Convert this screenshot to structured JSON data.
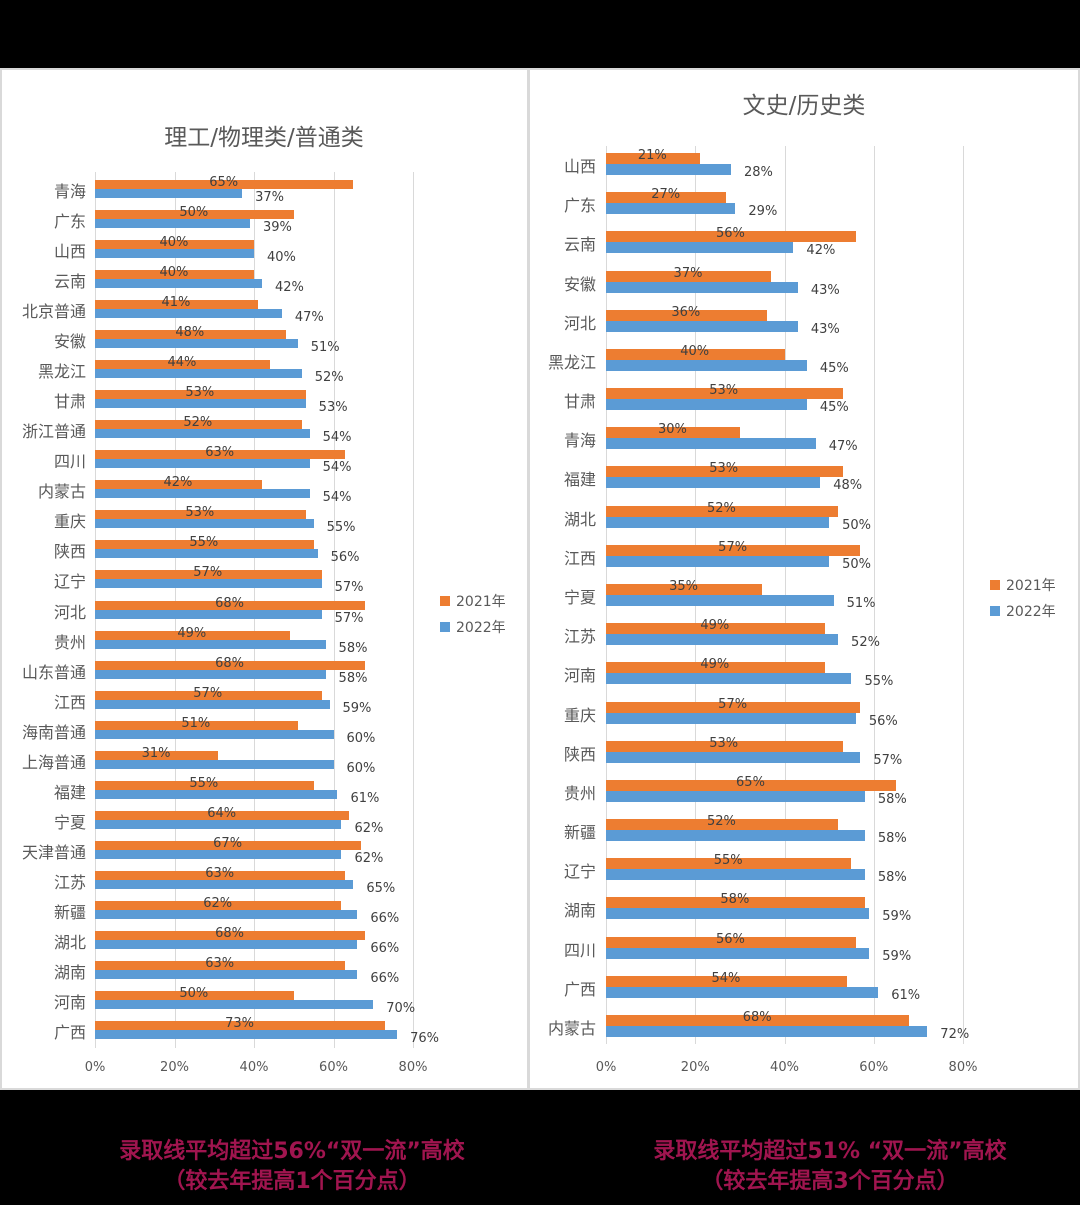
{
  "colors": {
    "series_2021": "#ed7d31",
    "series_2022": "#5b9bd5",
    "caption": "#a0154f",
    "grid": "#d9d9d9",
    "text": "#595959"
  },
  "legend": [
    "2021年",
    "2022年"
  ],
  "chart_data": [
    {
      "type": "bar",
      "orientation": "horizontal",
      "title": "理工/物理类/普通类",
      "categories": [
        "青海",
        "广东",
        "山西",
        "云南",
        "北京普通",
        "安徽",
        "黑龙江",
        "甘肃",
        "浙江普通",
        "四川",
        "内蒙古",
        "重庆",
        "陕西",
        "辽宁",
        "河北",
        "贵州",
        "山东普通",
        "江西",
        "海南普通",
        "上海普通",
        "福建",
        "宁夏",
        "天津普通",
        "江苏",
        "新疆",
        "湖北",
        "湖南",
        "河南",
        "广西"
      ],
      "series": [
        {
          "name": "2021年",
          "values": [
            65,
            50,
            40,
            40,
            41,
            48,
            44,
            53,
            52,
            63,
            42,
            53,
            55,
            57,
            68,
            49,
            68,
            57,
            51,
            31,
            55,
            64,
            67,
            63,
            62,
            68,
            63,
            50,
            73
          ]
        },
        {
          "name": "2022年",
          "values": [
            37,
            39,
            40,
            42,
            47,
            51,
            52,
            53,
            54,
            54,
            54,
            55,
            56,
            57,
            57,
            58,
            58,
            59,
            60,
            60,
            61,
            62,
            62,
            65,
            66,
            66,
            66,
            70,
            76
          ]
        }
      ],
      "xlabel": "",
      "ylabel": "",
      "xticks": [
        "0%",
        "20%",
        "40%",
        "60%",
        "80%"
      ],
      "xlim": [
        0,
        80
      ],
      "grid": true,
      "legend_position": "right",
      "caption": [
        "录取线平均超过56%“双一流”高校",
        "（较去年提高1个百分点）"
      ]
    },
    {
      "type": "bar",
      "orientation": "horizontal",
      "title": "文史/历史类",
      "categories": [
        "山西",
        "广东",
        "云南",
        "安徽",
        "河北",
        "黑龙江",
        "甘肃",
        "青海",
        "福建",
        "湖北",
        "江西",
        "宁夏",
        "江苏",
        "河南",
        "重庆",
        "陕西",
        "贵州",
        "新疆",
        "辽宁",
        "湖南",
        "四川",
        "广西",
        "内蒙古"
      ],
      "series": [
        {
          "name": "2021年",
          "values": [
            21,
            27,
            56,
            37,
            36,
            40,
            53,
            30,
            53,
            52,
            57,
            35,
            49,
            49,
            57,
            53,
            65,
            52,
            55,
            58,
            56,
            54,
            68
          ]
        },
        {
          "name": "2022年",
          "values": [
            28,
            29,
            42,
            43,
            43,
            45,
            45,
            47,
            48,
            50,
            50,
            51,
            52,
            55,
            56,
            57,
            58,
            58,
            58,
            59,
            59,
            61,
            72
          ]
        }
      ],
      "xlabel": "",
      "ylabel": "",
      "xticks": [
        "0%",
        "20%",
        "40%",
        "60%",
        "80%"
      ],
      "xlim": [
        0,
        80
      ],
      "grid": true,
      "legend_position": "right",
      "caption": [
        "录取线平均超过51% “双一流”高校",
        "（较去年提高3个百分点）"
      ]
    }
  ]
}
